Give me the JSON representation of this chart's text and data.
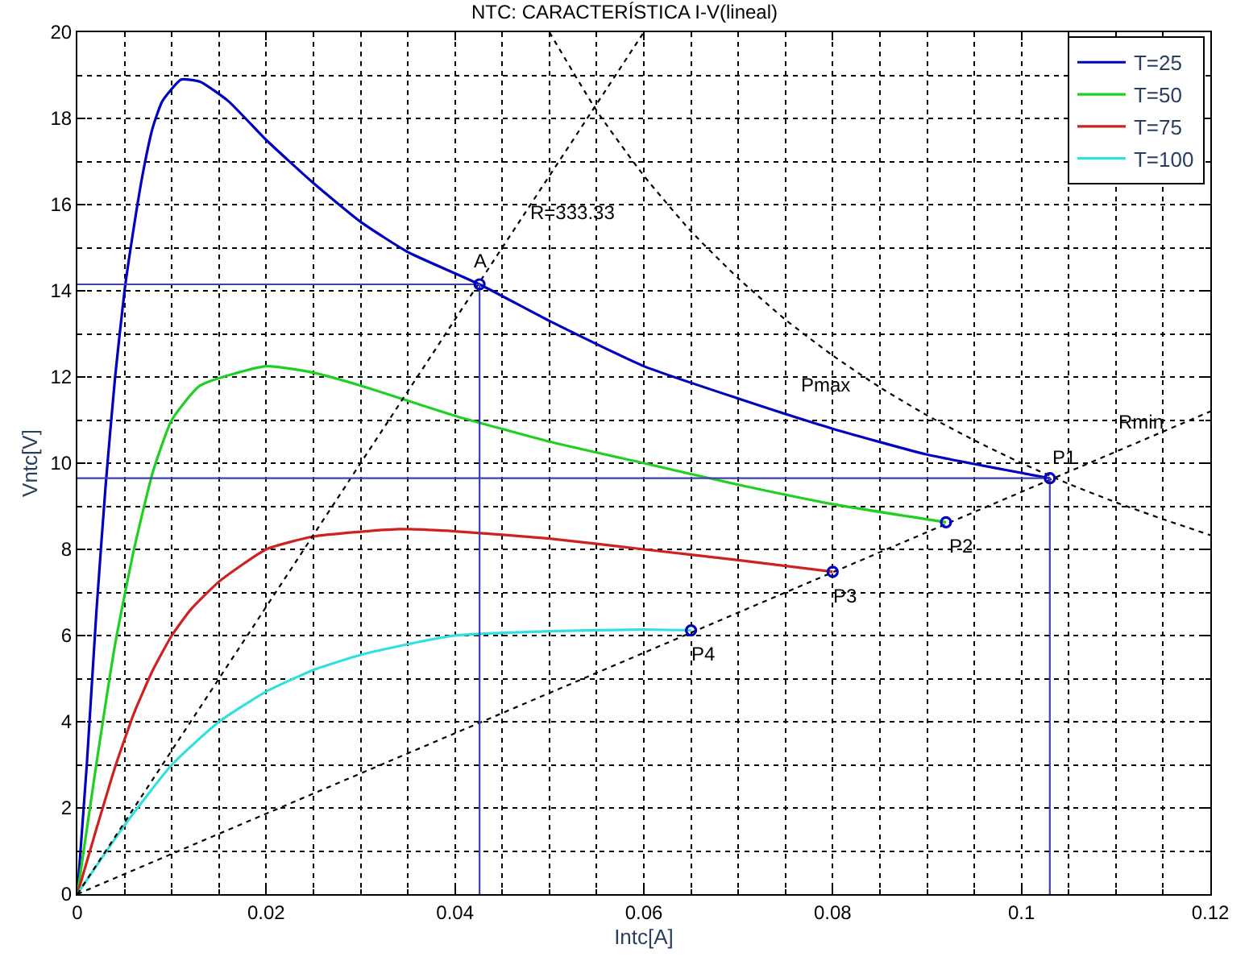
{
  "chart_data": {
    "type": "line",
    "title": "NTC: CARACTERÍSTICA I-V(lineal)",
    "xlabel": "Intc[A]",
    "ylabel": "Vntc[V]",
    "xlim": [
      0,
      0.12
    ],
    "xticks": [
      0,
      0.02,
      0.04,
      0.06,
      0.08,
      0.1,
      0.12
    ],
    "ylim": [
      0,
      20
    ],
    "yticks": [
      0,
      2,
      4,
      6,
      8,
      10,
      12,
      14,
      16,
      18,
      20
    ],
    "grid": true,
    "legend": "top right",
    "line_style": "solid",
    "marker": "none",
    "series": [
      {
        "name": "T=25",
        "color": "#0000c0",
        "x": [
          0,
          0.001,
          0.002,
          0.003,
          0.004,
          0.005,
          0.006,
          0.007,
          0.008,
          0.009,
          0.011,
          0.013,
          0.016,
          0.02,
          0.025,
          0.03,
          0.035,
          0.0426,
          0.05,
          0.06,
          0.07,
          0.08,
          0.09,
          0.103
        ],
        "values": [
          0,
          3,
          6.5,
          9.5,
          12,
          14,
          15.5,
          16.8,
          17.8,
          18.4,
          18.9,
          18.85,
          18.4,
          17.5,
          16.5,
          15.6,
          14.9,
          14.15,
          13.3,
          12.25,
          11.5,
          10.8,
          10.2,
          9.65
        ]
      },
      {
        "name": "T=50",
        "color": "#20d020",
        "x": [
          0,
          0.002,
          0.004,
          0.006,
          0.008,
          0.01,
          0.013,
          0.02,
          0.025,
          0.03,
          0.04,
          0.05,
          0.06,
          0.07,
          0.08,
          0.092
        ],
        "values": [
          0,
          3,
          5.8,
          8,
          9.8,
          11,
          11.8,
          12.25,
          12.1,
          11.8,
          11.1,
          10.5,
          10,
          9.5,
          9.05,
          8.63
        ]
      },
      {
        "name": "T=75",
        "color": "#d02020",
        "x": [
          0,
          0.002,
          0.004,
          0.006,
          0.008,
          0.01,
          0.012,
          0.015,
          0.02,
          0.025,
          0.034,
          0.04,
          0.05,
          0.06,
          0.07,
          0.08
        ],
        "values": [
          0,
          1.5,
          2.95,
          4.2,
          5.2,
          6,
          6.6,
          7.25,
          8,
          8.3,
          8.47,
          8.42,
          8.25,
          8,
          7.75,
          7.48
        ]
      },
      {
        "name": "T=100",
        "color": "#30e0e0",
        "x": [
          0,
          0.005,
          0.01,
          0.015,
          0.02,
          0.025,
          0.03,
          0.035,
          0.04,
          0.05,
          0.06,
          0.065
        ],
        "values": [
          0,
          1.6,
          3,
          4,
          4.7,
          5.2,
          5.55,
          5.8,
          6,
          6.1,
          6.14,
          6.12
        ]
      },
      {
        "color": "#000000",
        "line_style": "dotted",
        "x": [
          0,
          0.06
        ],
        "values": [
          0,
          20
        ]
      },
      {
        "color": "#000000",
        "line_style": "dotted",
        "x": [
          0,
          0.12
        ],
        "values": [
          0,
          11.2
        ]
      },
      {
        "color": "#000000",
        "line_style": "dotted",
        "x": [
          0.05,
          0.055,
          0.06,
          0.065,
          0.07,
          0.075,
          0.08,
          0.085,
          0.09,
          0.095,
          0.1,
          0.105,
          0.11,
          0.115,
          0.12
        ],
        "values": [
          20,
          18.18,
          16.67,
          15.38,
          14.29,
          13.33,
          12.5,
          11.76,
          11.11,
          10.53,
          10,
          9.52,
          9.09,
          8.7,
          8.33
        ]
      },
      {
        "color": "#4040b0",
        "x": [
          0,
          0.0426,
          0.0426
        ],
        "values": [
          14.15,
          14.15,
          0
        ]
      },
      {
        "color": "#4040b0",
        "x": [
          0,
          0.103,
          0.103
        ],
        "values": [
          9.65,
          9.65,
          0
        ]
      },
      {
        "type": "scatter",
        "color": "#0000c0",
        "marker": "circle",
        "x": [
          0.0426,
          0.103,
          0.092,
          0.08,
          0.065
        ],
        "values": [
          14.15,
          9.65,
          8.63,
          7.48,
          6.12
        ]
      }
    ],
    "annotations": [
      {
        "text": "A",
        "x": 0.0426,
        "y": 14.15
      },
      {
        "text": "R=333.33",
        "x": 0.0474,
        "y": 15.8
      },
      {
        "text": "Pmax",
        "x": 0.08,
        "y": 12.5
      },
      {
        "text": "Rmin",
        "x": 0.1126,
        "y": 10.5
      },
      {
        "text": "P1",
        "x": 0.103,
        "y": 9.65
      },
      {
        "text": "P2",
        "x": 0.092,
        "y": 8.63
      },
      {
        "text": "P3",
        "x": 0.08,
        "y": 7.48
      },
      {
        "text": "P4",
        "x": 0.065,
        "y": 6.12
      }
    ]
  }
}
